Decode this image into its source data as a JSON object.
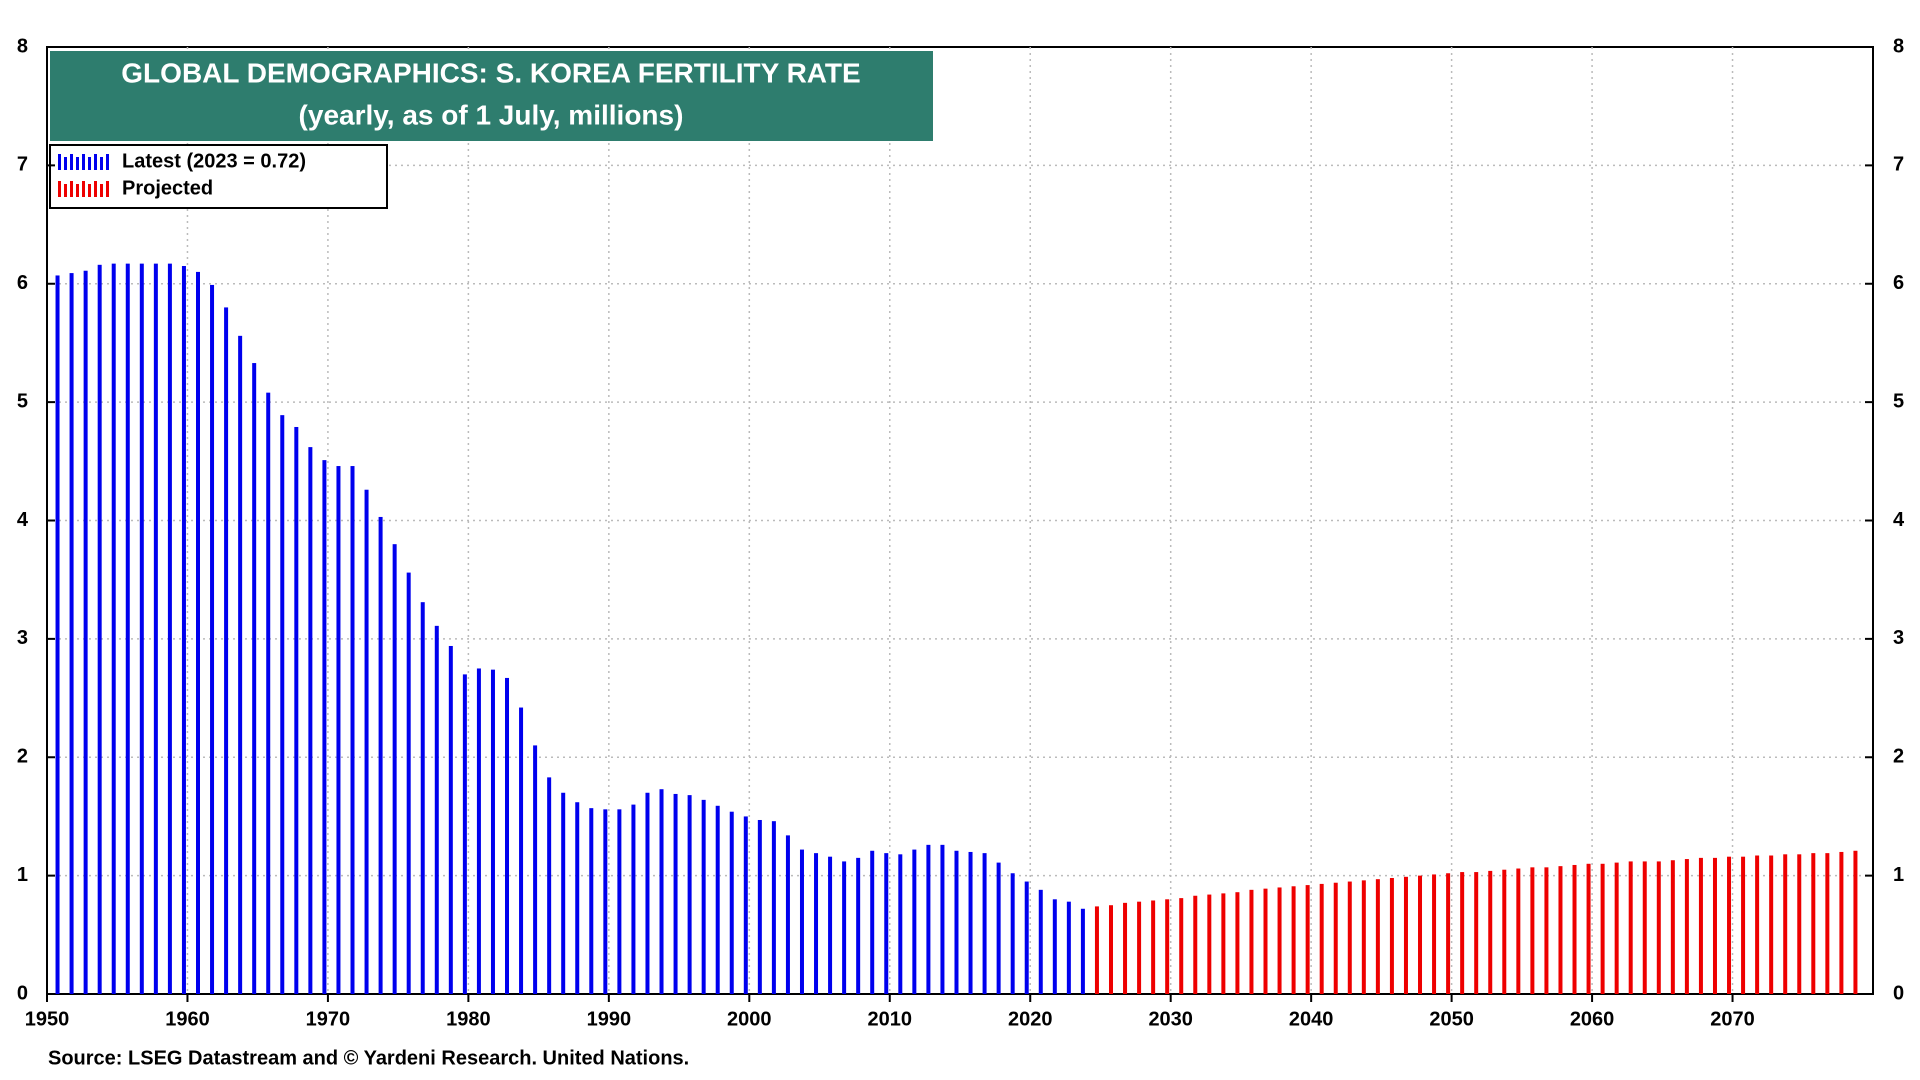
{
  "chart_data": {
    "type": "bar",
    "title": "GLOBAL DEMOGRAPHICS: S. KOREA FERTILITY RATE",
    "subtitle": "(yearly, as of 1 July, millions)",
    "source": "Source: LSEG Datastream and © Yardeni Research. United Nations.",
    "xlim": [
      1950,
      2080
    ],
    "xticks": [
      1950,
      1960,
      1970,
      1980,
      1990,
      2000,
      2010,
      2020,
      2030,
      2040,
      2050,
      2060,
      2070
    ],
    "ylim": [
      0,
      8
    ],
    "yticks": [
      0,
      1,
      2,
      3,
      4,
      5,
      6,
      7,
      8
    ],
    "grid": true,
    "legend": "top-left",
    "series": [
      {
        "name": "Latest (2023 = 0.72)",
        "color": "#0000ee",
        "x": [
          1950,
          1951,
          1952,
          1953,
          1954,
          1955,
          1956,
          1957,
          1958,
          1959,
          1960,
          1961,
          1962,
          1963,
          1964,
          1965,
          1966,
          1967,
          1968,
          1969,
          1970,
          1971,
          1972,
          1973,
          1974,
          1975,
          1976,
          1977,
          1978,
          1979,
          1980,
          1981,
          1982,
          1983,
          1984,
          1985,
          1986,
          1987,
          1988,
          1989,
          1990,
          1991,
          1992,
          1993,
          1994,
          1995,
          1996,
          1997,
          1998,
          1999,
          2000,
          2001,
          2002,
          2003,
          2004,
          2005,
          2006,
          2007,
          2008,
          2009,
          2010,
          2011,
          2012,
          2013,
          2014,
          2015,
          2016,
          2017,
          2018,
          2019,
          2020,
          2021,
          2022,
          2023
        ],
        "values": [
          6.07,
          6.09,
          6.11,
          6.16,
          6.17,
          6.17,
          6.17,
          6.17,
          6.17,
          6.15,
          6.1,
          5.99,
          5.8,
          5.56,
          5.33,
          5.08,
          4.89,
          4.79,
          4.62,
          4.51,
          4.46,
          4.46,
          4.26,
          4.03,
          3.8,
          3.56,
          3.31,
          3.11,
          2.94,
          2.7,
          2.75,
          2.74,
          2.67,
          2.42,
          2.1,
          1.83,
          1.7,
          1.62,
          1.57,
          1.56,
          1.56,
          1.6,
          1.7,
          1.73,
          1.69,
          1.68,
          1.64,
          1.59,
          1.54,
          1.5,
          1.47,
          1.46,
          1.34,
          1.22,
          1.19,
          1.16,
          1.12,
          1.15,
          1.21,
          1.19,
          1.18,
          1.22,
          1.26,
          1.26,
          1.21,
          1.2,
          1.19,
          1.11,
          1.02,
          0.95,
          0.88,
          0.8,
          0.78,
          0.72
        ]
      },
      {
        "name": "Projected",
        "color": "#ee0000",
        "x": [
          2024,
          2025,
          2026,
          2027,
          2028,
          2029,
          2030,
          2031,
          2032,
          2033,
          2034,
          2035,
          2036,
          2037,
          2038,
          2039,
          2040,
          2041,
          2042,
          2043,
          2044,
          2045,
          2046,
          2047,
          2048,
          2049,
          2050,
          2051,
          2052,
          2053,
          2054,
          2055,
          2056,
          2057,
          2058,
          2059,
          2060,
          2061,
          2062,
          2063,
          2064,
          2065,
          2066,
          2067,
          2068,
          2069,
          2070,
          2071,
          2072,
          2073,
          2074,
          2075,
          2076,
          2077,
          2078
        ],
        "values": [
          0.74,
          0.75,
          0.77,
          0.78,
          0.79,
          0.8,
          0.81,
          0.83,
          0.84,
          0.85,
          0.86,
          0.88,
          0.89,
          0.9,
          0.91,
          0.92,
          0.93,
          0.94,
          0.95,
          0.96,
          0.97,
          0.98,
          0.99,
          1.0,
          1.01,
          1.02,
          1.03,
          1.03,
          1.04,
          1.05,
          1.06,
          1.07,
          1.07,
          1.08,
          1.09,
          1.1,
          1.1,
          1.11,
          1.12,
          1.12,
          1.12,
          1.13,
          1.14,
          1.15,
          1.15,
          1.16,
          1.16,
          1.17,
          1.17,
          1.18,
          1.18,
          1.19,
          1.19,
          1.2,
          1.21
        ]
      }
    ]
  }
}
